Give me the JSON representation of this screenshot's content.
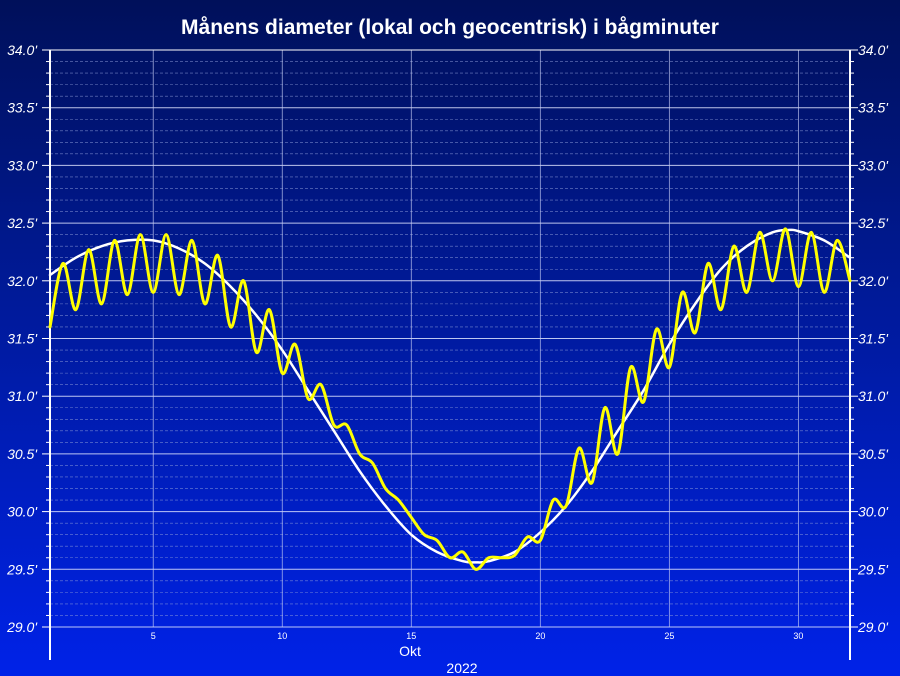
{
  "chart_data": {
    "type": "line",
    "title": "Månens diameter (lokal och geocentrisk) i bågminuter",
    "xlabel": "Okt",
    "xlabel2": "2022",
    "xlim": [
      1,
      32
    ],
    "ylim": [
      29.0,
      34.0
    ],
    "x_ticks": [
      5,
      10,
      15,
      20,
      25,
      30
    ],
    "y_ticks": [
      29.0,
      29.5,
      30.0,
      30.5,
      31.0,
      31.5,
      32.0,
      32.5,
      33.0,
      33.5,
      34.0
    ],
    "y_tick_labels": [
      "29.0'",
      "29.5'",
      "30.0'",
      "30.5'",
      "31.0'",
      "31.5'",
      "32.0'",
      "32.5'",
      "33.0'",
      "33.5'",
      "34.0'"
    ],
    "grid": true,
    "series": [
      {
        "color": "#ffffff",
        "x": [
          1.0,
          2.0,
          3.0,
          4.0,
          5.0,
          6.0,
          7.0,
          8.0,
          9.0,
          10.0,
          11.0,
          12.0,
          13.0,
          14.0,
          15.0,
          16.0,
          17.0,
          17.5,
          18.0,
          19.0,
          20.0,
          21.0,
          22.0,
          23.0,
          24.0,
          25.0,
          26.0,
          27.0,
          28.0,
          29.0,
          29.6,
          30.0,
          31.0,
          32.0
        ],
        "values": [
          32.05,
          32.2,
          32.3,
          32.35,
          32.35,
          32.28,
          32.15,
          31.95,
          31.7,
          31.4,
          31.05,
          30.7,
          30.35,
          30.05,
          29.8,
          29.65,
          29.57,
          29.56,
          29.57,
          29.65,
          29.82,
          30.05,
          30.35,
          30.7,
          31.05,
          31.45,
          31.8,
          32.1,
          32.3,
          32.42,
          32.44,
          32.43,
          32.35,
          32.2
        ]
      },
      {
        "color": "#ffff00",
        "x": [
          1.0,
          1.5,
          2.0,
          2.5,
          3.0,
          3.5,
          4.0,
          4.5,
          5.0,
          5.5,
          6.0,
          6.5,
          7.0,
          7.5,
          8.0,
          8.5,
          9.0,
          9.5,
          10.0,
          10.5,
          11.0,
          11.5,
          12.0,
          12.5,
          13.0,
          13.5,
          14.0,
          14.5,
          15.0,
          15.5,
          16.0,
          16.5,
          17.0,
          17.5,
          18.0,
          18.5,
          19.0,
          19.5,
          20.0,
          20.5,
          21.0,
          21.5,
          22.0,
          22.5,
          23.0,
          23.5,
          24.0,
          24.5,
          25.0,
          25.5,
          26.0,
          26.5,
          27.0,
          27.5,
          28.0,
          28.5,
          29.0,
          29.5,
          30.0,
          30.5,
          31.0,
          31.5,
          32.0
        ],
        "values": [
          31.6,
          32.15,
          31.75,
          32.27,
          31.8,
          32.35,
          31.88,
          32.4,
          31.9,
          32.4,
          31.88,
          32.35,
          31.8,
          32.22,
          31.6,
          32.0,
          31.38,
          31.75,
          31.2,
          31.45,
          30.98,
          31.1,
          30.75,
          30.75,
          30.5,
          30.42,
          30.2,
          30.1,
          29.95,
          29.8,
          29.75,
          29.6,
          29.65,
          29.5,
          29.6,
          29.6,
          29.62,
          29.78,
          29.75,
          30.1,
          30.05,
          30.55,
          30.25,
          30.9,
          30.5,
          31.25,
          30.95,
          31.58,
          31.25,
          31.9,
          31.55,
          32.15,
          31.75,
          32.3,
          31.9,
          32.42,
          32.0,
          32.45,
          31.95,
          32.42,
          31.9,
          32.35,
          32.0
        ]
      }
    ]
  }
}
